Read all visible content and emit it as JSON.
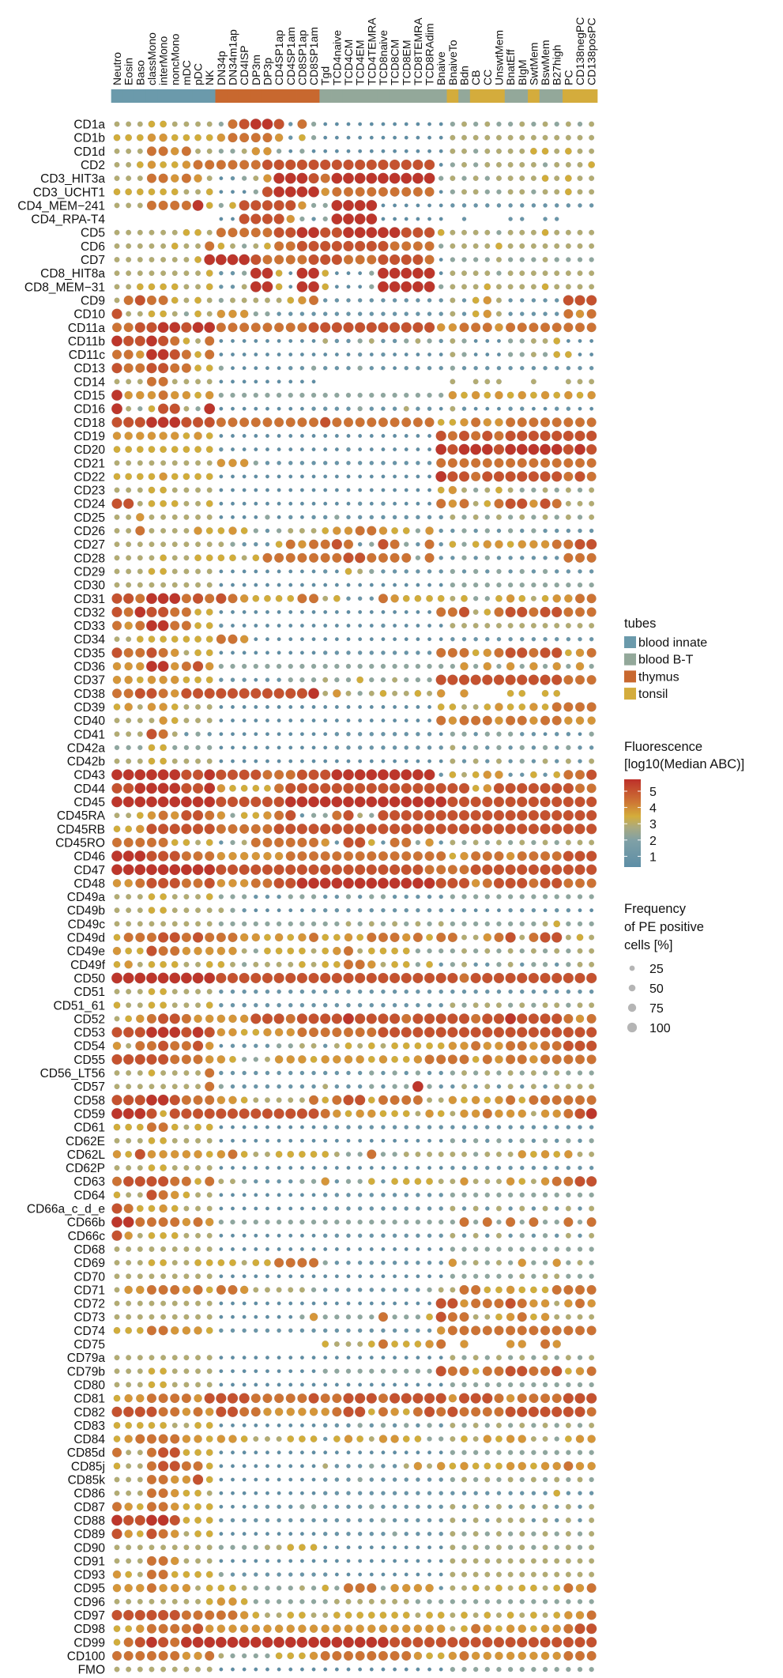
{
  "chart_data": {
    "type": "dotplot",
    "title": "",
    "columns": [
      "Neutro",
      "Eosin",
      "Baso",
      "classMono",
      "interMono",
      "noncMono",
      "mDC",
      "pDC",
      "NK",
      "DN34p",
      "DN34m1ap",
      "CD4ISP",
      "DP3m",
      "DP3p",
      "CD4SP1ap",
      "CD4SP1am",
      "CD8SP1ap",
      "CD8SP1am",
      "Tgd",
      "TCD4naive",
      "TCD4CM",
      "TCD4EM",
      "TCD4TEMRA",
      "TCD8naive",
      "TCD8CM",
      "TCD8EM",
      "TCD8TEMRA",
      "TCD8RAdim",
      "Bnaive",
      "BnaiveTo",
      "Bdn",
      "CB",
      "CC",
      "UnswtMem",
      "BnatEff",
      "BIgM",
      "SwtMem",
      "BswMem",
      "B27high",
      "PC",
      "CD138negPC",
      "CD138posPC"
    ],
    "column_tubes": [
      "blood innate",
      "blood innate",
      "blood innate",
      "blood innate",
      "blood innate",
      "blood innate",
      "blood innate",
      "blood innate",
      "blood innate",
      "thymus",
      "thymus",
      "thymus",
      "thymus",
      "thymus",
      "thymus",
      "thymus",
      "thymus",
      "thymus",
      "blood B-T",
      "blood B-T",
      "blood B-T",
      "blood B-T",
      "blood B-T",
      "blood B-T",
      "blood B-T",
      "blood B-T",
      "blood B-T",
      "blood B-T",
      "blood B-T",
      "tonsil",
      "blood B-T",
      "tonsil",
      "tonsil",
      "tonsil",
      "blood B-T",
      "blood B-T",
      "tonsil",
      "blood B-T",
      "blood B-T",
      "tonsil",
      "tonsil",
      "tonsil"
    ],
    "level_note": "each cell level 1-9; fluorescence log10(Median ABC) = 0.5 + 0.5*level; '.' = not measured",
    "fluorescence_per_level": 0.5,
    "rows": [
      {
        "marker": "CD1a",
        "levels": "444554444 378998273 11111111111 3434334343434"
      },
      {
        "marker": "CD1b",
        "levels": "555665555 677776253 11111111111 4444444444444"
      },
      {
        "marker": "CD1d",
        "levels": "444776744 334663131 11111111111 4434444554544"
      },
      {
        "marker": "CD2",
        "levels": "445655677 777788888 88888888881 3434444434445"
      },
      {
        "marker": "CD3_HIT3a",
        "levels": "444776764 123469998 79999999993 4343444454544"
      },
      {
        "marker": "CD3_UCHT1",
        "levels": "555555445 111389999 67777777771 3443344344544"
      },
      {
        "marker": "CD4_MEM−241",
        "levels": "444777795 358888863 39999111111 2222222222222"
      },
      {
        "marker": "CD4_RPA-T4",
        "levels": "......... 118888632 39999111111 .2...22.22..."
      },
      {
        "marker": "CD5",
        "levels": "444444554 777778899 88999998885 4444344454444"
      },
      {
        "marker": "CD6",
        "levels": "444445447 543457788 88888877773 4444544444444"
      },
      {
        "marker": "CD7",
        "levels": "444444459 999877778 88777888871 3333433343333"
      },
      {
        "marker": "CD8_HIT8a",
        "levels": "444444445 223995199 51113999991 4444344444444"
      },
      {
        "marker": "CD8_MEM−31",
        "levels": "445555445 224995199 51113999993 4445444454444"
      },
      {
        "marker": "CD9",
        "levels": "478775454 344444567 22222222222 4256422222888"
      },
      {
        "marker": "CD10",
        "levels": "844554354 666332222 22222222222 4256422222767"
      },
      {
        "marker": "CD11a",
        "levels": "778899899 777777778 88888888886 6777677777777"
      },
      {
        "marker": "CD11b",
        "levels": "988987547 111111111 42234223432 4311133445111"
      },
      {
        "marker": "CD11c",
        "levels": "776998757 111111111 11121211111 4311133435511"
      },
      {
        "marker": "CD13",
        "levels": "877887755 311111223 22232212222 3222222222222"
      },
      {
        "marker": "CD14",
        "levels": "444774444 111111111 ........... 4.444..4..444"
      },
      {
        "marker": "CD15",
        "levels": "966676656 333333333 33333333333 6565656565656"
      },
      {
        "marker": "CD16",
        "levels": "943588439 111111112 22232224221 4211122112211"
      },
      {
        "marker": "CD18",
        "levels": "888999888 777777777 87777777775 5676677777777"
      },
      {
        "marker": "CD19",
        "levels": "666666565 111111111 11111111118 7878788888888"
      },
      {
        "marker": "CD20",
        "levels": "555555555 211111111 11211111119 8999899999898"
      },
      {
        "marker": "CD21",
        "levels": "444444444 666322222 22222222227 7777777777777"
      },
      {
        "marker": "CD22",
        "levels": "555565555 111111111 11111111119 8878888888787"
      },
      {
        "marker": "CD23",
        "levels": "444554444 111111111 11111111115 6434543343434"
      },
      {
        "marker": "CD24",
        "levels": "884555445 111111111 11121211117 6745788687444"
      },
      {
        "marker": "CD25",
        "levels": "446444444 111131212 23222222222 4343434343434"
      },
      {
        "marker": "CD26",
        "levels": "447444465 565323444 56677655362 2323232322222"
      },
      {
        "marker": "CD27",
        "levels": "444444444 432225767 78723873272 5356656667788"
      },
      {
        "marker": "CD28",
        "levels": "444454455 554577777 77887777372 2323222222777"
      },
      {
        "marker": "CD29",
        "levels": "444554444 111111111 21543222222 3232323232222"
      },
      {
        "marker": "CD30",
        "levels": "444444444 111111111 11111111111 3333333333333"
      },
      {
        "marker": "CD31",
        "levels": "887999787 876555577 45222765555 4533565456677"
      },
      {
        "marker": "CD32",
        "levels": "879887755 111111111 11111111117 7845788788777"
      },
      {
        "marker": "CD33",
        "levels": "767997755 211111111 11111211111 4444444444444"
      },
      {
        "marker": "CD34",
        "levels": "445555555 776111111 11111111111 2222222222222"
      },
      {
        "marker": "CD35",
        "levels": "877876455 111111111 22222222227 7756788788567"
      },
      {
        "marker": "CD36",
        "levels": "666996786 333333333 33333333333 3636363636363"
      },
      {
        "marker": "CD37",
        "levels": "665666555 222122333 43353343338 8888888888777"
      },
      {
        "marker": "CD38",
        "levels": "778876888 888888889 46434544546 .6...55.55..."
      },
      {
        "marker": "CD39",
        "levels": "564665444 111111111 11111111115 5445655657777"
      },
      {
        "marker": "CD40",
        "levels": "444465444 111111111 11111111117 6777677677666"
      },
      {
        "marker": "CD41",
        "levels": "444874232 111111111 12222222221 3323332212213"
      },
      {
        "marker": "CD42a",
        "levels": "333553333 111111111 12222222222 4232323232322"
      },
      {
        "marker": "CD42b",
        "levels": "444554444 111111111 11111111111 4242423242424"
      },
      {
        "marker": "CD43",
        "levels": "999999889 888877788 89999999992 5456622525778"
      },
      {
        "marker": "CD44",
        "levels": "889999889 655557888 88888888888 8856888888877"
      },
      {
        "marker": "CD45",
        "levels": "999999999 888888999 99999999999 8888888888888"
      },
      {
        "marker": "CD45RA",
        "levels": "445676887 635567823 37843888888 8888888888888"
      },
      {
        "marker": "CD45RB",
        "levels": "556888888 777778888 88888888888 8888888888888"
      },
      {
        "marker": "CD45RO",
        "levels": "777775545 234777777 62885277362 4343434343444"
      },
      {
        "marker": "CD46",
        "levels": "999888777 666666777 77777777777 5677767777888"
      },
      {
        "marker": "CD47",
        "levels": "999999999 888888888 88888888877 7788888888888"
      },
      {
        "marker": "CD48",
        "levels": "667888778 666778899 99999999998 8867888788777"
      },
      {
        "marker": "CD49a",
        "levels": "444554445 333222333 22323322222 3333333333333"
      },
      {
        "marker": "CD49b",
        "levels": "444554444 432111112 22222222222 1211122212211"
      },
      {
        "marker": "CD49c",
        "levels": "444444444 333333333 33434343434 3333333345333"
      },
      {
        "marker": "CD49d",
        "levels": "577788787 776656567 55657776757 7446784788454"
      },
      {
        "marker": "CD49e",
        "levels": "655877666 664355554 56745555333 3434343434344"
      },
      {
        "marker": "CD49f",
        "levels": "564555445 543444454 55776455352 3422342332344"
      },
      {
        "marker": "CD50",
        "levels": "999999999 888888888 88888888888 8788888888888"
      },
      {
        "marker": "CD51",
        "levels": "444554444 222222222 22222222222 2222222222222"
      },
      {
        "marker": "CD51_61",
        "levels": "544554445 222222222 22222222222 4344434344344"
      },
      {
        "marker": "CD52",
        "levels": "456788766 666888788 88988887888 8878898888767"
      },
      {
        "marker": "CD53",
        "levels": "888999898 665566677 77777888888 8888888888888"
      },
      {
        "marker": "CD54",
        "levels": "647787786 122223344 24545455555 6676677677888"
      },
      {
        "marker": "CD55",
        "levels": "888887776 653346665 66665655677 7757677677777"
      },
      {
        "marker": "CD56_LT56",
        "levels": "444544447 222222222 22223232322 3434343434333"
      },
      {
        "marker": "CD57",
        "levels": "444444447 322222222 42223233932 2424242424444"
      },
      {
        "marker": "CD58",
        "levels": "888998777 665444447 57885777744 6565675777777"
      },
      {
        "marker": "CD59",
        "levels": "999858888 888888888 76566555465 4667666466789"
      },
      {
        "marker": "CD61",
        "levels": "555775455 111111111 22222222222 2222222222222"
      },
      {
        "marker": "CD62E",
        "levels": "444554444 111111111 11111111111 3232323232323"
      },
      {
        "marker": "CD62L",
        "levels": "658666665 675445555 54337334444 4434446565644"
      },
      {
        "marker": "CD62P",
        "levels": "444554444 111111111 11111111111 2222222222222"
      },
      {
        "marker": "CD63",
        "levels": "788887757 443222233 62335255554 4644465467788"
      },
      {
        "marker": "CD64",
        "levels": "544876544 111111111 22222222222 3333333333333"
      },
      {
        "marker": "CD66a_c_d_e",
        "levels": "875565444 111111111 22222222222 4242424242424"
      },
      {
        "marker": "CD66b",
        "levels": "997777676 333333333 33333333333 3737373733737"
      },
      {
        "marker": "CD66c",
        "levels": "864555444 111111111 22222222222 4242423232424"
      },
      {
        "marker": "CD68",
        "levels": "444444444 111111111 11111111111 3333333333333"
      },
      {
        "marker": "CD69",
        "levels": "444554455 554557777 32222222222 6343436336343"
      },
      {
        "marker": "CD70",
        "levels": "444444444 111111111 11111111111 3333334344333"
      },
      {
        "marker": "CD71",
        "levels": "466777675 776444443 22222222234 4775565557777"
      },
      {
        "marker": "CD72",
        "levels": "444444444 111111111 11111111118 8677787664676"
      },
      {
        "marker": "CD73",
        "levels": "444444444 111111136 33333733358 7744567564444"
      },
      {
        "marker": "CD74",
        "levels": "555776665 222222222 22222222226 7777777777777"
      },
      {
        "marker": "CD75",
        "levels": "......... ......... 54445755567 .6...66.76..."
      },
      {
        "marker": "CD79a",
        "levels": "444444444 111111111 11111111111 4343434343434"
      },
      {
        "marker": "CD79b",
        "levels": "444554444 111111111 33333333338 7757788778567"
      },
      {
        "marker": "CD80",
        "levels": "444554444 111111111 11111111111 3333333333333"
      },
      {
        "marker": "CD81",
        "levels": "566777768 888777778 77888788888 6888767777888"
      },
      {
        "marker": "CD82",
        "levels": "888877676 887766666 67885765787 8777788888887"
      },
      {
        "marker": "CD83",
        "levels": "555554455 111111111 22232323232 4343434343434"
      },
      {
        "marker": "CD84",
        "levels": "567777665 665444555 25654665533 4546566443566"
      },
      {
        "marker": "CD85d",
        "levels": "744788555 111111111 11111111111 3333333333333"
      },
      {
        "marker": "CD85j",
        "levels": "544788775 111111111 42223224646 5655566566766"
      },
      {
        "marker": "CD85k",
        "levels": "444776685 111111111 22232222222 3434343434343"
      },
      {
        "marker": "CD86",
        "levels": "444776554 111111111 22222222222 2222222225222"
      },
      {
        "marker": "CD87",
        "levels": "765776555 111222233 22223222222 4242424242424"
      },
      {
        "marker": "CD88",
        "levels": "988998555 222222222 22222322222 4242444242424"
      },
      {
        "marker": "CD89",
        "levels": "865876455 111111111 22222232222 4343434343434"
      },
      {
        "marker": "CD90",
        "levels": "444444444 333344555 11111111111 4343434343434"
      },
      {
        "marker": "CD91",
        "levels": "444776444 111111111 11111111111 4444444444444"
      },
      {
        "marker": "CD93",
        "levels": "654775555 322222222 21111111111 4444444444444"
      },
      {
        "marker": "CD95",
        "levels": "666766645 554333343 53777366662 4454545545767"
      },
      {
        "marker": "CD96",
        "levels": "444444445 665333333 34444444333 3333333333333"
      },
      {
        "marker": "CD97",
        "levels": "888888777 776544554 45555555455 4545454545667"
      },
      {
        "marker": "CD98",
        "levels": "556777786 666666666 66666666666 4576566566788"
      },
      {
        "marker": "CD99",
        "levels": "578987999 999999999 99999988888 8888888888888"
      },
      {
        "marker": "CD100",
        "levels": "777777667 433335556 77777777655 6766666666777"
      },
      {
        "marker": "FMO",
        "levels": "444444444 111111111 11111111111 3333333333333"
      }
    ],
    "legend": {
      "tubes": {
        "title": "tubes",
        "items": [
          {
            "label": "blood innate",
            "color": "#6b9aab"
          },
          {
            "label": "blood B-T",
            "color": "#93a89a"
          },
          {
            "label": "thymus",
            "color": "#c8682f"
          },
          {
            "label": "tonsil",
            "color": "#d4ac3c"
          }
        ]
      },
      "fluorescence": {
        "title_line1": "Fluorescence",
        "title_line2": "[log10(Median ABC)]",
        "ticks": [
          "5",
          "4",
          "3",
          "2",
          "1"
        ],
        "range": [
          0.5,
          5.4
        ]
      },
      "frequency": {
        "title_line1": "Frequency",
        "title_line2": "of PE positive",
        "title_line3": "cells [%]",
        "ticks": [
          "25",
          "50",
          "75",
          "100"
        ]
      }
    },
    "level_colors": [
      "#5d8ea6",
      "#6896aa",
      "#8ea79f",
      "#b3ac72",
      "#d2ad3a",
      "#d69639",
      "#cd7334",
      "#c5522f",
      "#bd362b"
    ]
  }
}
